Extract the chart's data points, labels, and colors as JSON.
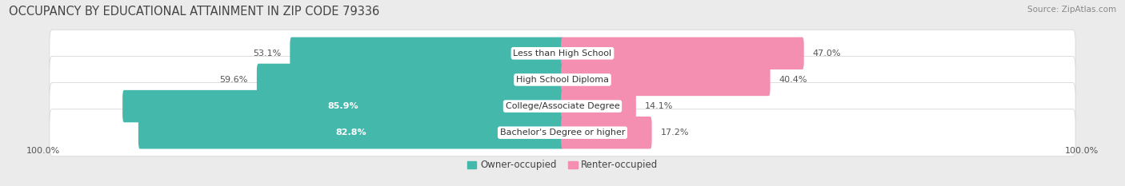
{
  "title": "OCCUPANCY BY EDUCATIONAL ATTAINMENT IN ZIP CODE 79336",
  "source": "Source: ZipAtlas.com",
  "categories": [
    "Less than High School",
    "High School Diploma",
    "College/Associate Degree",
    "Bachelor's Degree or higher"
  ],
  "owner_pct": [
    53.1,
    59.6,
    85.9,
    82.8
  ],
  "renter_pct": [
    47.0,
    40.4,
    14.1,
    17.2
  ],
  "owner_color": "#45b8ac",
  "renter_color": "#f48fb1",
  "bg_color": "#ebebeb",
  "row_bg_color": "#ffffff",
  "row_border_color": "#d8d8d8",
  "title_color": "#444444",
  "label_color_dark": "#555555",
  "label_color_white": "#ffffff",
  "source_color": "#888888",
  "title_fontsize": 10.5,
  "label_fontsize": 8.0,
  "tick_fontsize": 8.0,
  "source_fontsize": 7.5,
  "legend_fontsize": 8.5,
  "left_axis_label": "100.0%",
  "right_axis_label": "100.0%"
}
